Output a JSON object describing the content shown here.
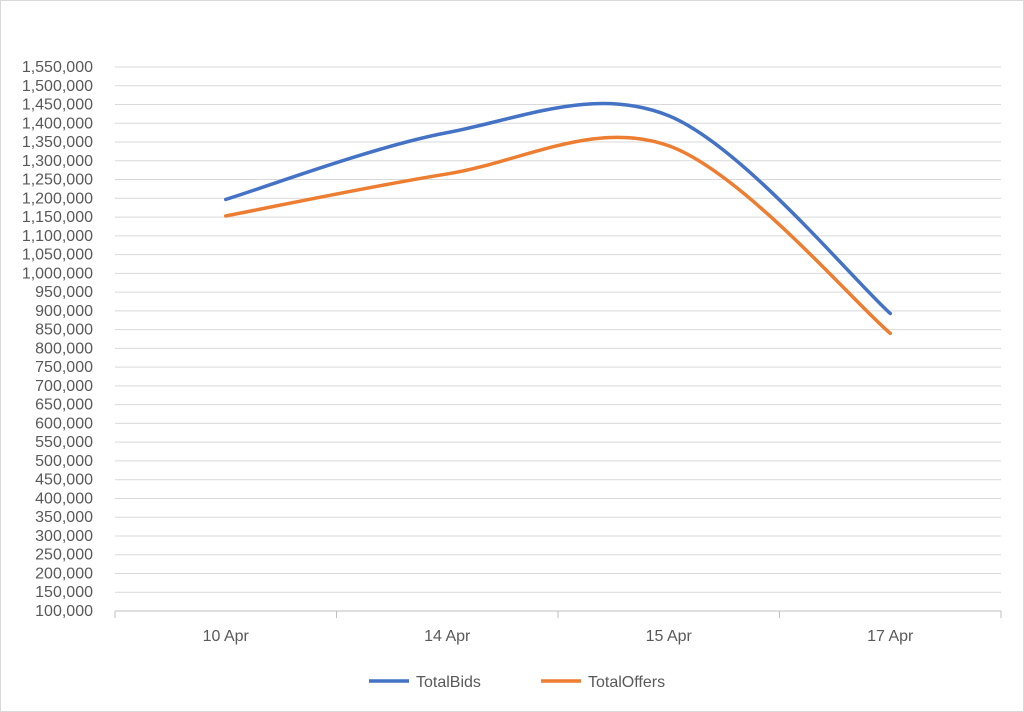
{
  "chart_data": {
    "type": "line",
    "smooth": true,
    "categories": [
      "10 Apr",
      "14 Apr",
      "15 Apr",
      "17 Apr"
    ],
    "series": [
      {
        "name": "TotalBids",
        "color": "#4472c4",
        "values": [
          1197000,
          1375000,
          1420000,
          893000
        ]
      },
      {
        "name": "TotalOffers",
        "color": "#ed7d31",
        "values": [
          1153000,
          1265000,
          1340000,
          840000
        ]
      }
    ],
    "ylim": [
      100000,
      1550000
    ],
    "y_tick_step": 50000,
    "y_tick_labels": [
      "100,000",
      "150,000",
      "200,000",
      "250,000",
      "300,000",
      "350,000",
      "400,000",
      "450,000",
      "500,000",
      "550,000",
      "600,000",
      "650,000",
      "700,000",
      "750,000",
      "800,000",
      "850,000",
      "900,000",
      "950,000",
      "1,000,000",
      "1,050,000",
      "1,100,000",
      "1,150,000",
      "1,200,000",
      "1,250,000",
      "1,300,000",
      "1,350,000",
      "1,400,000",
      "1,450,000",
      "1,500,000",
      "1,550,000"
    ],
    "grid": true,
    "legend_position": "bottom",
    "title": "",
    "xlabel": "",
    "ylabel": ""
  }
}
